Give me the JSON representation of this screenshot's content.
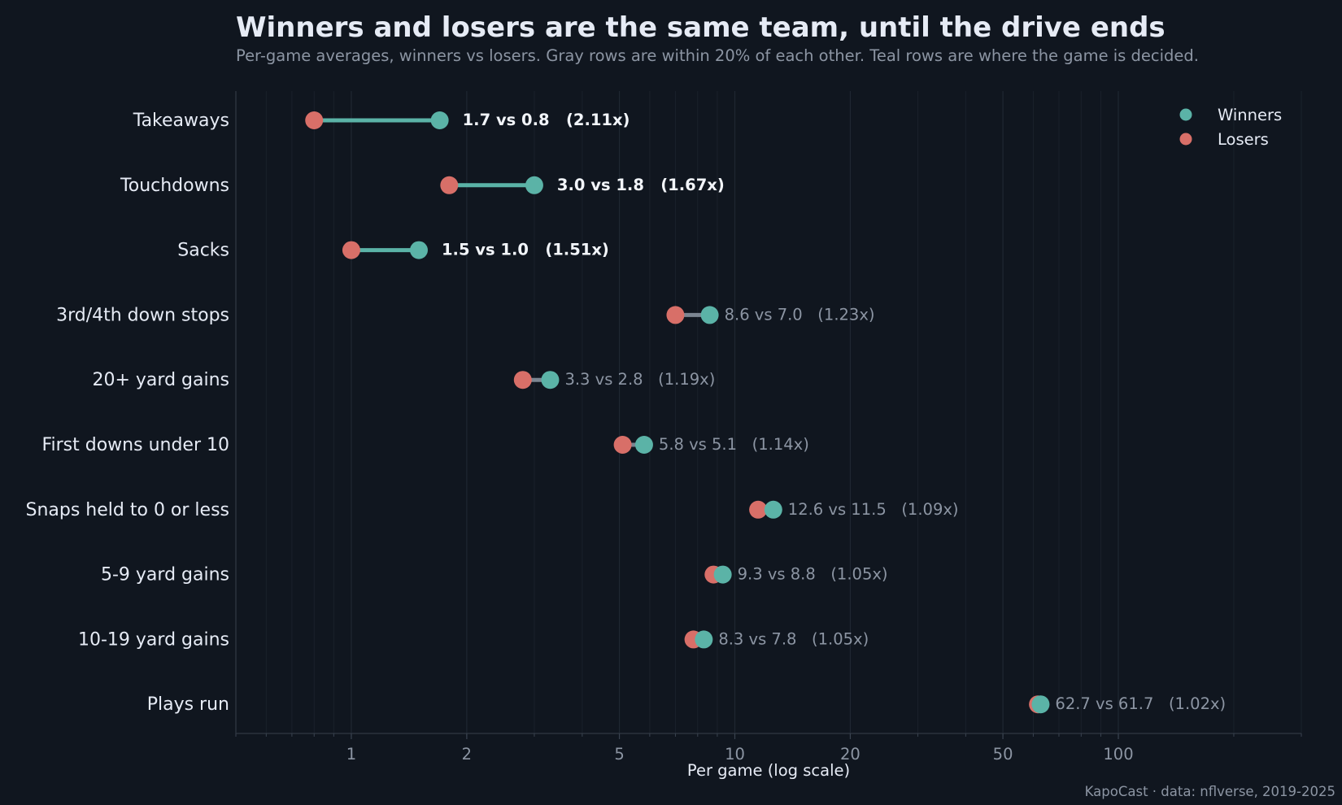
{
  "title": "Winners and losers are the same team, until the drive ends",
  "subtitle": "Per-game averages, winners vs losers. Gray rows are within 20% of each other. Teal rows are where the game is decided.",
  "credit": "KapoCast · data: nflverse, 2019-2025",
  "colors": {
    "background": "#10161f",
    "winners": "#5bb3a7",
    "losers": "#d86f68",
    "decisive_line": "#5bb3a7",
    "close_line": "#7b8591",
    "text": "#e6ebf5",
    "muted": "#8c95a3"
  },
  "chart_data": {
    "type": "dumbbell",
    "xlabel": "Per game (log scale)",
    "xscale": "log",
    "xlim": [
      0.5,
      300
    ],
    "xticks": [
      1,
      2,
      5,
      10,
      20,
      50,
      100
    ],
    "xtick_labels": [
      "1",
      "2",
      "5",
      "10",
      "20",
      "50",
      "100"
    ],
    "grid": "vertical",
    "legend_position": "top-right",
    "series": [
      {
        "name": "Winners",
        "key": "winners"
      },
      {
        "name": "Losers",
        "key": "losers"
      }
    ],
    "rows": [
      {
        "label": "Takeaways",
        "winners": 1.7,
        "losers": 0.8,
        "annotation": "1.7 vs 0.8   (2.11x)",
        "decisive": true
      },
      {
        "label": "Touchdowns",
        "winners": 3.0,
        "losers": 1.8,
        "annotation": "3.0 vs 1.8   (1.67x)",
        "decisive": true
      },
      {
        "label": "Sacks",
        "winners": 1.5,
        "losers": 1.0,
        "annotation": "1.5 vs 1.0   (1.51x)",
        "decisive": true
      },
      {
        "label": "3rd/4th down stops",
        "winners": 8.6,
        "losers": 7.0,
        "annotation": "8.6 vs 7.0   (1.23x)",
        "decisive": false
      },
      {
        "label": "20+ yard gains",
        "winners": 3.3,
        "losers": 2.8,
        "annotation": "3.3 vs 2.8   (1.19x)",
        "decisive": false
      },
      {
        "label": "First downs under 10",
        "winners": 5.8,
        "losers": 5.1,
        "annotation": "5.8 vs 5.1   (1.14x)",
        "decisive": false
      },
      {
        "label": "Snaps held to 0 or less",
        "winners": 12.6,
        "losers": 11.5,
        "annotation": "12.6 vs 11.5   (1.09x)",
        "decisive": false
      },
      {
        "label": "5-9 yard gains",
        "winners": 9.3,
        "losers": 8.8,
        "annotation": "9.3 vs 8.8   (1.05x)",
        "decisive": false
      },
      {
        "label": "10-19 yard gains",
        "winners": 8.3,
        "losers": 7.8,
        "annotation": "8.3 vs 7.8   (1.05x)",
        "decisive": false
      },
      {
        "label": "Plays run",
        "winners": 62.7,
        "losers": 61.7,
        "annotation": "62.7 vs 61.7   (1.02x)",
        "decisive": false
      }
    ]
  }
}
